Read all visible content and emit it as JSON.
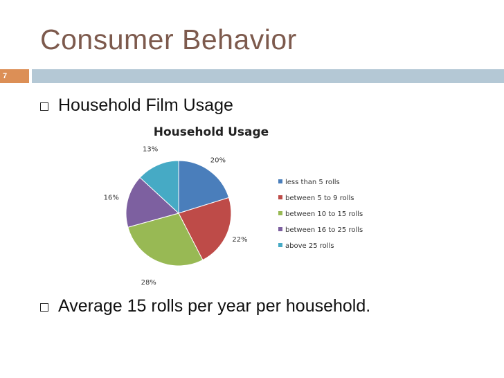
{
  "slide": {
    "title": "Consumer Behavior",
    "number": "7",
    "bullets": [
      "Household Film Usage",
      "Average 15 rolls per year per household."
    ]
  },
  "chart_data": {
    "type": "pie",
    "title": "Household Usage",
    "categories": [
      "less than 5 rolls",
      "between 5 to 9 rolls",
      "between 10 to 15 rolls",
      "between 16 to 25 rolls",
      "above 25 rolls"
    ],
    "values": [
      20,
      22,
      28,
      16,
      13
    ],
    "value_labels": [
      "20%",
      "22%",
      "28%",
      "16%",
      "13%"
    ],
    "colors": [
      "#4a7ebb",
      "#be4b48",
      "#98b954",
      "#7d60a0",
      "#46aac5"
    ],
    "legend": "right"
  },
  "colors": {
    "title": "#7d5a4d",
    "accent": "#dc8f56",
    "rule": "#b4c8d5"
  }
}
